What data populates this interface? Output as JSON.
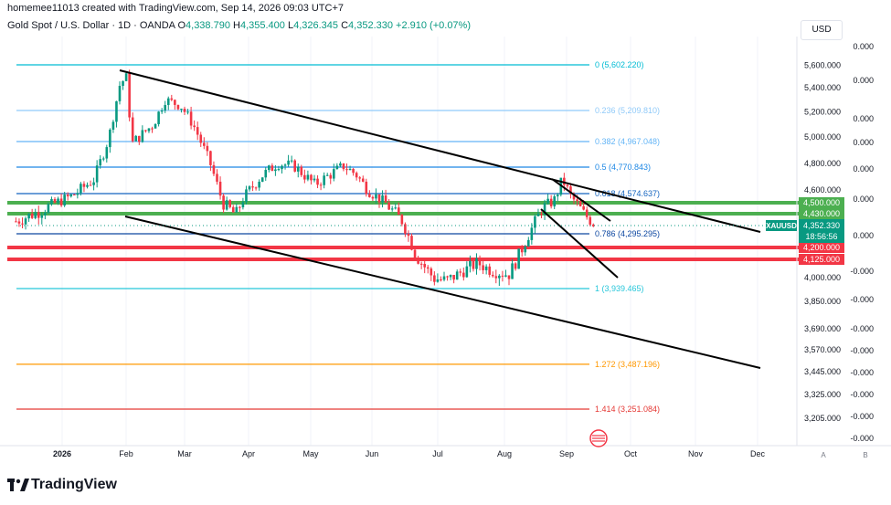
{
  "attribution": "homemee11013 created with TradingView.com, Sep 14, 2026 09:03 UTC+7",
  "header": {
    "symbol": "Gold Spot / U.S. Dollar · 1D · OANDA",
    "open_label": "O",
    "open": "4,338.790",
    "high_label": "H",
    "high": "4,355.400",
    "low_label": "L",
    "low": "4,326.345",
    "close_label": "C",
    "close": "4,352.330",
    "change": "+2.910 (+0.07%)"
  },
  "currency": "USD",
  "brand": "TradingView",
  "chart_data": {
    "type": "candlestick",
    "symbol": "XAUUSD",
    "price_axis_labels": [
      "5,600.000",
      "5,400.000",
      "5,200.000",
      "5,000.000",
      "4,800.000",
      "4,600.000",
      "4,000.000",
      "3,850.000",
      "3,690.000",
      "3,570.000",
      "3,445.000",
      "3,325.000",
      "3,205.000"
    ],
    "right_axis_zero_labels": [
      "0.000",
      "0.000",
      "0.000",
      "0.000",
      "0.000",
      "0.000",
      "0.000",
      "-0.000",
      "-0.000",
      "-0.000",
      "-0.000",
      "-0.000",
      "-0.000",
      "-0.000",
      "-0.000",
      "-0.000"
    ],
    "time_axis_labels": [
      "2026",
      "Feb",
      "Mar",
      "Apr",
      "May",
      "Jun",
      "Jul",
      "Aug",
      "Sep",
      "Oct",
      "Nov",
      "Dec"
    ],
    "axis_letters": [
      "A",
      "B"
    ],
    "fibonacci": [
      {
        "label": "0 (5,602.220)",
        "color": "#00bcd4"
      },
      {
        "label": "0.236 (5,209.810)",
        "color": "#90caf9"
      },
      {
        "label": "0.382 (4,967.048)",
        "color": "#64b5f6"
      },
      {
        "label": "0.5 (4,770.843)",
        "color": "#1e88e5"
      },
      {
        "label": "0.618 (4,574.637)",
        "color": "#1565c0"
      },
      {
        "label": "0.786 (4,295.295)",
        "color": "#0d47a1"
      },
      {
        "label": "1 (3,939.465)",
        "color": "#26c6da"
      },
      {
        "label": "1.272 (3,487.196)",
        "color": "#ff9800"
      },
      {
        "label": "1.414 (3,251.084)",
        "color": "#e53935"
      }
    ],
    "horizontal_levels": [
      {
        "value": "4,500.000",
        "color": "#4caf50"
      },
      {
        "value": "4,430.000",
        "color": "#4caf50"
      },
      {
        "value": "4,200.000",
        "color": "#f23645"
      },
      {
        "value": "4,125.000",
        "color": "#f23645"
      }
    ],
    "last_price": {
      "symbol": "XAUUSD",
      "price": "4,352.330",
      "countdown": "18:56:56",
      "color": "#089981"
    }
  }
}
